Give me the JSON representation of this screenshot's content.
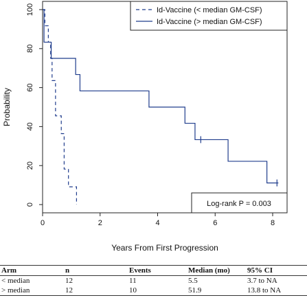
{
  "chart_data": {
    "type": "line",
    "xlabel": "Years From First Progression",
    "ylabel": "Probability",
    "xlim": [
      0,
      8.2
    ],
    "ylim": [
      0,
      100
    ],
    "x_ticks": [
      0,
      2,
      4,
      6,
      8
    ],
    "y_ticks": [
      0,
      20,
      40,
      60,
      80,
      100
    ],
    "grid": false,
    "legend_position": "top-right",
    "annotation": "Log-rank P = 0.003",
    "series": [
      {
        "name": "Id-Vaccine (< median GM-CSF)",
        "style": "dashed",
        "color": "#1f3c8c",
        "steps": [
          {
            "x": 0,
            "y": 100
          },
          {
            "x": 0.08,
            "y": 91.7
          },
          {
            "x": 0.2,
            "y": 83.3
          },
          {
            "x": 0.28,
            "y": 75
          },
          {
            "x": 0.33,
            "y": 63.6
          },
          {
            "x": 0.45,
            "y": 45.5
          },
          {
            "x": 0.65,
            "y": 36.4
          },
          {
            "x": 0.75,
            "y": 18.2
          },
          {
            "x": 0.9,
            "y": 9.1
          },
          {
            "x": 1.18,
            "y": 0
          }
        ],
        "censored": []
      },
      {
        "name": "Id-Vaccine (> median GM-CSF)",
        "style": "solid",
        "color": "#1f3c8c",
        "steps": [
          {
            "x": 0,
            "y": 100
          },
          {
            "x": 0.05,
            "y": 83.3
          },
          {
            "x": 0.3,
            "y": 75
          },
          {
            "x": 1.15,
            "y": 66.7
          },
          {
            "x": 1.3,
            "y": 58.3
          },
          {
            "x": 3.7,
            "y": 50
          },
          {
            "x": 4.95,
            "y": 41.7
          },
          {
            "x": 5.3,
            "y": 33.3
          },
          {
            "x": 6.45,
            "y": 22.2
          },
          {
            "x": 7.8,
            "y": 11.1
          }
        ],
        "end_x": 8.2,
        "censored": [
          {
            "x": 5.5,
            "y": 33.3
          },
          {
            "x": 8.15,
            "y": 11.1
          }
        ]
      }
    ]
  },
  "table": {
    "headers": [
      "Arm",
      "n",
      "Events",
      "Median (mo)",
      "95% CI"
    ],
    "rows": [
      [
        "< median",
        "12",
        "11",
        "5.5",
        "3.7 to NA"
      ],
      [
        "> median",
        "12",
        "10",
        "51.9",
        "13.8 to NA"
      ]
    ]
  }
}
